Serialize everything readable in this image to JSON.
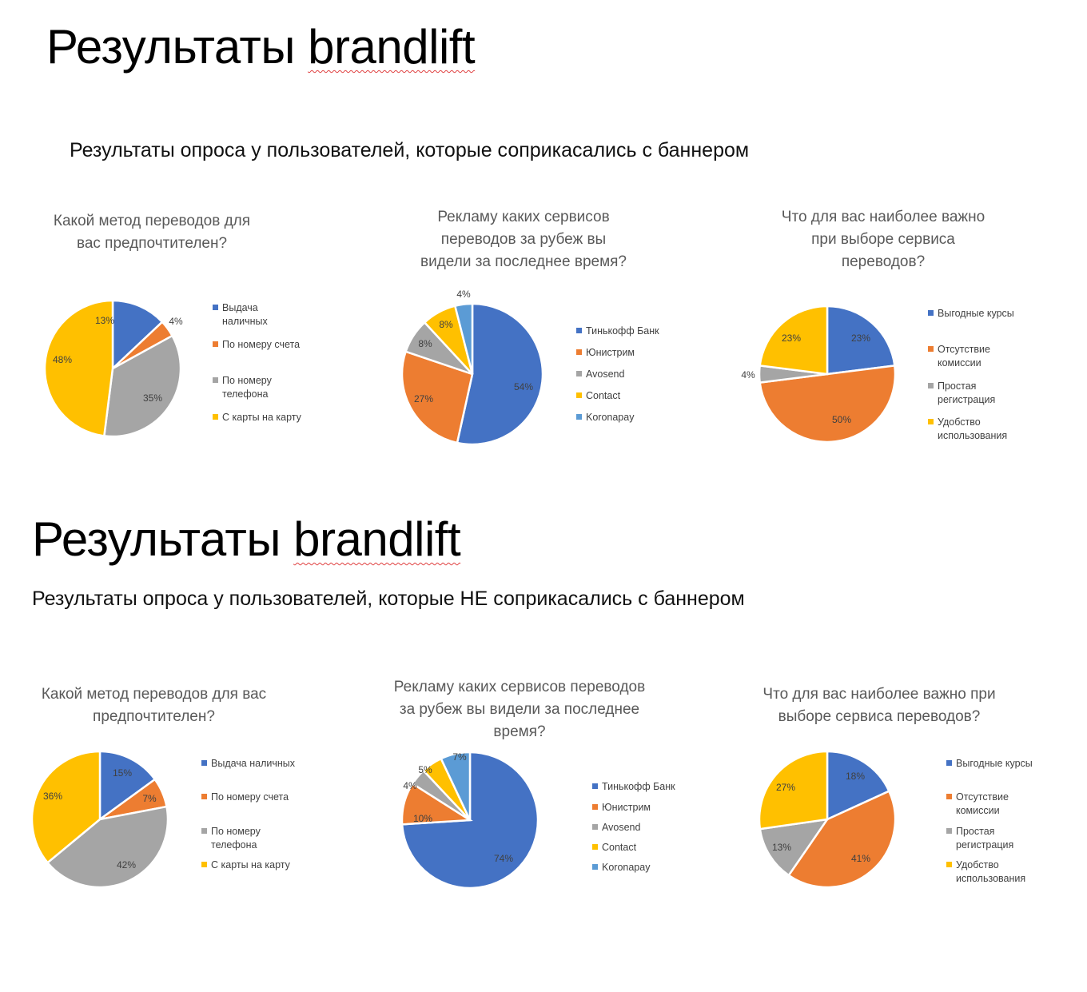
{
  "sections": [
    {
      "title_prefix": "Результаты ",
      "title_brand": "brandlift",
      "subtitle": "Результаты опроса у пользователей, которые соприкасались с баннером"
    },
    {
      "title_prefix": "Результаты ",
      "title_brand": "brandlift",
      "subtitle": "Результаты опроса у пользователей, которые НЕ соприкасались с баннером"
    }
  ],
  "colors": {
    "blue": "#4472C4",
    "orange": "#ED7D31",
    "gray": "#A5A5A5",
    "yellow": "#FFC000",
    "lightblue": "#5B9BD5"
  },
  "chart_data": [
    {
      "type": "pie",
      "group": "Соприкасались с баннером",
      "title": "Какой метод переводов для вас предпочтителен?",
      "title_lines": [
        "Какой метод переводов для",
        "вас предпочтителен?"
      ],
      "categories": [
        "Выдача наличных",
        "По номеру счета",
        "По номеру телефона",
        "С карты на карту"
      ],
      "legend_lines": [
        [
          "Выдача",
          "наличных"
        ],
        [
          "По номеру счета"
        ],
        [
          "По номеру",
          "телефона"
        ],
        [
          "С карты на карту"
        ]
      ],
      "values": [
        13,
        4,
        35,
        48
      ],
      "labels": [
        "13%",
        "4%",
        "35%",
        "48%"
      ],
      "colors": [
        "#4472C4",
        "#ED7D31",
        "#A5A5A5",
        "#FFC000"
      ]
    },
    {
      "type": "pie",
      "group": "Соприкасались с баннером",
      "title": "Рекламу каких сервисов переводов за рубеж вы видели за последнее время?",
      "title_lines": [
        "Рекламу каких сервисов",
        "переводов за рубеж вы",
        "видели за последнее время?"
      ],
      "categories": [
        "Тинькофф Банк",
        "Юнистрим",
        "Avosend",
        "Contact",
        "Koronapay"
      ],
      "legend_lines": [
        [
          "Тинькофф Банк"
        ],
        [
          "Юнистрим"
        ],
        [
          "Avosend"
        ],
        [
          "Contact"
        ],
        [
          "Koronapay"
        ]
      ],
      "values": [
        54,
        27,
        8,
        8,
        4
      ],
      "labels": [
        "54%",
        "27%",
        "8%",
        "8%",
        "4%"
      ],
      "colors": [
        "#4472C4",
        "#ED7D31",
        "#A5A5A5",
        "#FFC000",
        "#5B9BD5"
      ]
    },
    {
      "type": "pie",
      "group": "Соприкасались с баннером",
      "title": "Что для вас наиболее важно при выборе сервиса переводов?",
      "title_lines": [
        "Что для вас наиболее важно",
        "при выборе сервиса",
        "переводов?"
      ],
      "categories": [
        "Выгодные курсы",
        "Отсутствие комиссии",
        "Простая регистрация",
        "Удобство использования"
      ],
      "legend_lines": [
        [
          "Выгодные курсы"
        ],
        [
          "Отсутствие",
          "комиссии"
        ],
        [
          "Простая",
          "регистрация"
        ],
        [
          "Удобство",
          "использования"
        ]
      ],
      "values": [
        23,
        50,
        4,
        23
      ],
      "labels": [
        "23%",
        "50%",
        "4%",
        "23%"
      ],
      "colors": [
        "#4472C4",
        "#ED7D31",
        "#A5A5A5",
        "#FFC000"
      ]
    },
    {
      "type": "pie",
      "group": "НЕ соприкасались с баннером",
      "title": "Какой метод переводов для вас предпочтителен?",
      "title_lines": [
        "Какой метод переводов для вас",
        "предпочтителен?"
      ],
      "categories": [
        "Выдача наличных",
        "По номеру счета",
        "По номеру телефона",
        "С карты на карту"
      ],
      "legend_lines": [
        [
          "Выдача наличных"
        ],
        [
          "По номеру счета"
        ],
        [
          "По номеру",
          "телефона"
        ],
        [
          "С карты на карту"
        ]
      ],
      "values": [
        15,
        7,
        42,
        36
      ],
      "labels": [
        "15%",
        "7%",
        "42%",
        "36%"
      ],
      "colors": [
        "#4472C4",
        "#ED7D31",
        "#A5A5A5",
        "#FFC000"
      ]
    },
    {
      "type": "pie",
      "group": "НЕ соприкасались с баннером",
      "title": "Рекламу каких сервисов переводов за рубеж вы видели за последнее время?",
      "title_lines": [
        "Рекламу каких сервисов переводов",
        "за рубеж вы видели за последнее",
        "время?"
      ],
      "categories": [
        "Тинькофф Банк",
        "Юнистрим",
        "Avosend",
        "Contact",
        "Koronapay"
      ],
      "legend_lines": [
        [
          "Тинькофф Банк"
        ],
        [
          "Юнистрим"
        ],
        [
          "Avosend"
        ],
        [
          "Contact"
        ],
        [
          "Koronapay"
        ]
      ],
      "values": [
        74,
        10,
        4,
        5,
        7
      ],
      "labels": [
        "74%",
        "10%",
        "4%",
        "5%",
        "7%"
      ],
      "colors": [
        "#4472C4",
        "#ED7D31",
        "#A5A5A5",
        "#FFC000",
        "#5B9BD5"
      ]
    },
    {
      "type": "pie",
      "group": "НЕ соприкасались с баннером",
      "title": "Что для вас наиболее важно при выборе сервиса переводов?",
      "title_lines": [
        "Что для вас наиболее важно при",
        "выборе сервиса переводов?"
      ],
      "categories": [
        "Выгодные курсы",
        "Отсутствие комиссии",
        "Простая регистрация",
        "Удобство использования"
      ],
      "legend_lines": [
        [
          "Выгодные курсы"
        ],
        [
          "Отсутствие",
          "комиссии"
        ],
        [
          "Простая",
          "регистрация"
        ],
        [
          "Удобство",
          "использования"
        ]
      ],
      "values": [
        18,
        41,
        13,
        27
      ],
      "labels": [
        "18%",
        "41%",
        "13%",
        "27%"
      ],
      "colors": [
        "#4472C4",
        "#ED7D31",
        "#A5A5A5",
        "#FFC000"
      ]
    }
  ]
}
